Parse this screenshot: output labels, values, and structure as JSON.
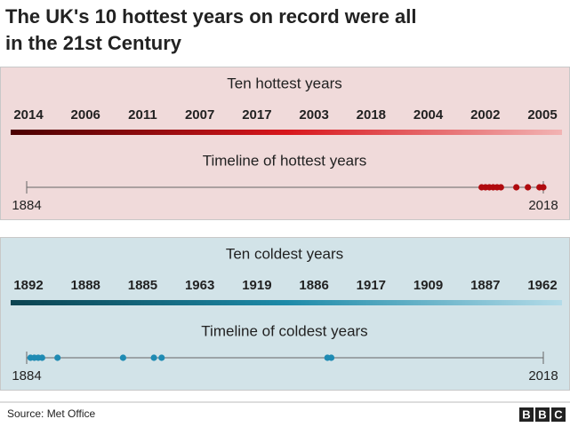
{
  "title": [
    "The UK's 10 hottest years on record were all",
    "in the 21st Century"
  ],
  "chart_data": [
    {
      "type": "timeline",
      "title": "Ten hottest years",
      "axis_title": "Timeline of hottest years",
      "values": [
        2014,
        2006,
        2011,
        2007,
        2017,
        2003,
        2018,
        2004,
        2002,
        2005
      ],
      "xlim": [
        1884,
        2018
      ],
      "xticks": [
        1884,
        2018
      ],
      "color": "#b00a0e",
      "background": "#f0dada",
      "gradient": [
        "#4a0000",
        "#d8161c",
        "#f2b3b3"
      ]
    },
    {
      "type": "timeline",
      "title": "Ten coldest years",
      "axis_title": "Timeline of coldest years",
      "values": [
        1892,
        1888,
        1885,
        1963,
        1919,
        1886,
        1917,
        1909,
        1887,
        1962
      ],
      "xlim": [
        1884,
        2018
      ],
      "xticks": [
        1884,
        2018
      ],
      "color": "#1f8bb3",
      "background": "#d2e3e8",
      "gradient": [
        "#0b4350",
        "#1d8aa8",
        "#b3dbe8"
      ]
    }
  ],
  "source": "Source: Met Office",
  "logo": [
    "B",
    "B",
    "C"
  ]
}
